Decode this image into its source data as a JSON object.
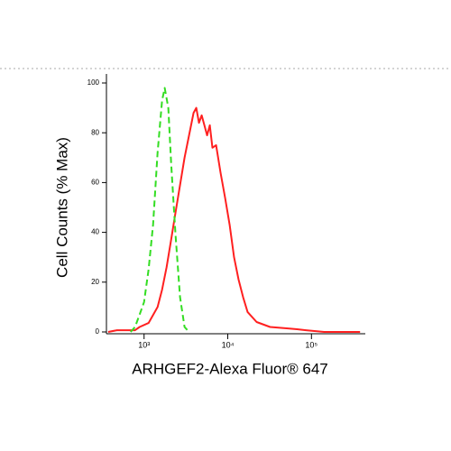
{
  "chart_data": {
    "type": "line",
    "xlabel": "ARHGEF2-Alexa Fluor® 647",
    "ylabel": "Cell Counts (% Max)",
    "xscale": "log",
    "xlim": [
      355,
      440000
    ],
    "ylim": [
      0,
      100
    ],
    "xticks": [
      {
        "value": 1000,
        "label": "10³"
      },
      {
        "value": 10000,
        "label": "10⁴"
      },
      {
        "value": 100000,
        "label": "10⁵"
      }
    ],
    "yticks": [
      0,
      20,
      40,
      60,
      80,
      100
    ],
    "series": [
      {
        "color": "#ff2020",
        "dashed": false,
        "x": [
          372,
          475,
          780,
          884,
          1131,
          1450,
          1640,
          1857,
          2103,
          2378,
          2692,
          3046,
          3450,
          3900,
          4206,
          4529,
          4876,
          5250,
          5660,
          6100,
          6560,
          7250,
          8200,
          9290,
          10520,
          11900,
          13460,
          15240,
          17250,
          22100,
          32000,
          52500,
          67200,
          86000,
          141500,
          381000
        ],
        "values": [
          0,
          0.7,
          0.7,
          2,
          3.6,
          10,
          17,
          26,
          37,
          48,
          59,
          70,
          79,
          88,
          90,
          84,
          87,
          83,
          79,
          83,
          74,
          75,
          64,
          54,
          43,
          30,
          21,
          14,
          8,
          4,
          2,
          1.4,
          1.1,
          0.7,
          0,
          0
        ]
      },
      {
        "color": "#33dd22",
        "dashed": true,
        "x": [
          690,
          780,
          884,
          1000,
          1131,
          1281,
          1450,
          1640,
          1766,
          1950,
          2103,
          2378,
          2692,
          3046,
          3450
        ],
        "values": [
          0,
          2,
          7,
          12,
          25,
          43,
          72,
          93,
          98,
          90,
          68,
          39,
          14,
          2,
          0
        ]
      }
    ]
  }
}
